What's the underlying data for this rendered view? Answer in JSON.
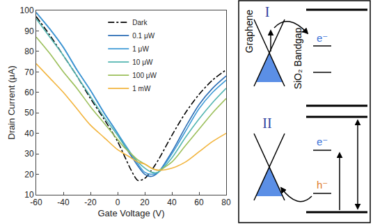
{
  "chart_data": {
    "type": "line",
    "x_label": "Gate Voltage (V)",
    "y_label": "Drain Current (μA)",
    "x": [
      -60,
      -50,
      -40,
      -30,
      -20,
      -10,
      0,
      5,
      10,
      15,
      20,
      25,
      30,
      40,
      50,
      60,
      70,
      80
    ],
    "series": [
      {
        "name": "Dark",
        "color": "#000000",
        "line_style": "dashdot",
        "values": [
          97,
          88,
          78,
          68,
          57,
          47,
          36,
          29,
          22,
          17,
          18,
          22,
          27,
          39,
          50,
          59,
          66,
          71
        ]
      },
      {
        "name": "0.1 μW",
        "color": "#2a6db5",
        "line_style": "solid",
        "values": [
          99,
          91,
          82,
          71,
          61,
          50,
          40,
          34,
          29,
          24,
          20,
          19,
          21,
          31,
          43,
          54,
          62,
          68
        ]
      },
      {
        "name": "1 μW",
        "color": "#3e9ad6",
        "line_style": "solid",
        "values": [
          99,
          91,
          82,
          71,
          61,
          50,
          40,
          35,
          30,
          25,
          21,
          20,
          21,
          30,
          41,
          52,
          60,
          66
        ]
      },
      {
        "name": "10 μW",
        "color": "#52b5b0",
        "line_style": "solid",
        "values": [
          96,
          87,
          78,
          68,
          58,
          48,
          39,
          34,
          30,
          26,
          23,
          21,
          21,
          28,
          38,
          47,
          55,
          62
        ]
      },
      {
        "name": "100 μW",
        "color": "#9bbf5a",
        "line_style": "solid",
        "values": [
          87,
          79,
          70,
          62,
          53,
          45,
          37,
          33,
          30,
          27,
          25,
          23,
          22,
          26,
          34,
          42,
          50,
          57
        ]
      },
      {
        "name": "1 mW",
        "color": "#f2b43c",
        "line_style": "solid",
        "values": [
          74,
          67,
          60,
          52,
          44,
          38,
          32,
          30,
          28,
          26,
          25,
          23,
          22,
          23,
          26,
          31,
          36,
          40
        ]
      }
    ],
    "xlim": [
      -60,
      80
    ],
    "xticks": [
      -60,
      -40,
      -20,
      0,
      20,
      40,
      60,
      80
    ],
    "ylim": [
      10,
      100
    ],
    "yticks": [
      10,
      20,
      30,
      40,
      50,
      60,
      70,
      80,
      90,
      100
    ],
    "grid": false,
    "legend": "top"
  },
  "diagram": {
    "side_label": "SiO₂ Bandgap",
    "panels": [
      {
        "label": "I",
        "material": "Graphene",
        "electron": "e⁻"
      },
      {
        "label": "II",
        "electron": "e⁻",
        "hole": "h⁻"
      }
    ]
  }
}
